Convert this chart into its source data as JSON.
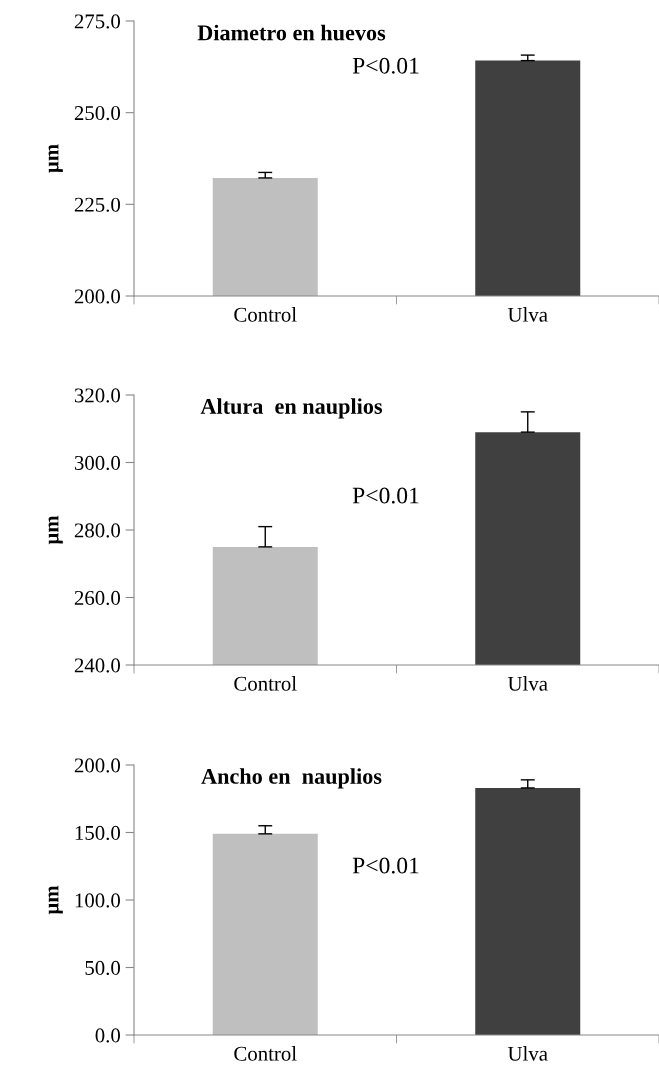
{
  "chart_data": [
    {
      "type": "bar",
      "title": "Diametro en huevos",
      "ylabel": "µm",
      "categories": [
        "Control",
        "Ulva"
      ],
      "values": [
        232.2,
        264.2
      ],
      "colors": [
        "#bfbfbf",
        "#404040"
      ],
      "errors": [
        [
          232.2,
          233.7
        ],
        [
          264.2,
          265.7
        ]
      ],
      "ylim": [
        200,
        275
      ],
      "yticks": [
        {
          "value": 200,
          "label": "200.0"
        },
        {
          "value": 225,
          "label": "225.0"
        },
        {
          "value": 250,
          "label": "250.0"
        },
        {
          "value": 275,
          "label": "275.0"
        }
      ],
      "annotations": [
        "P<0.01"
      ],
      "grid": false,
      "legend": false
    },
    {
      "type": "bar",
      "title": "Altura  en nauplios",
      "ylabel": "µm",
      "categories": [
        "Control",
        "Ulva"
      ],
      "values": [
        275.0,
        309.0
      ],
      "colors": [
        "#bfbfbf",
        "#404040"
      ],
      "errors": [
        [
          275.0,
          281.0
        ],
        [
          309.0,
          315.0
        ]
      ],
      "ylim": [
        240,
        320
      ],
      "yticks": [
        {
          "value": 240,
          "label": "240.0"
        },
        {
          "value": 260,
          "label": "260.0"
        },
        {
          "value": 280,
          "label": "280.0"
        },
        {
          "value": 300,
          "label": "300.0"
        },
        {
          "value": 320,
          "label": "320.0"
        }
      ],
      "annotations": [
        "P<0.01"
      ],
      "grid": false,
      "legend": false
    },
    {
      "type": "bar",
      "title": "Ancho en  nauplios",
      "ylabel": "µm",
      "categories": [
        "Control",
        "Ulva"
      ],
      "values": [
        149.0,
        183.0
      ],
      "colors": [
        "#bfbfbf",
        "#404040"
      ],
      "errors": [
        [
          149.0,
          155.0
        ],
        [
          183.0,
          189.0
        ]
      ],
      "ylim": [
        0,
        200
      ],
      "yticks": [
        {
          "value": 0,
          "label": "0.0"
        },
        {
          "value": 50,
          "label": "50.0"
        },
        {
          "value": 100,
          "label": "100.0"
        },
        {
          "value": 150,
          "label": "150.0"
        },
        {
          "value": 200,
          "label": "200.0"
        }
      ],
      "annotations": [
        "P<0.01"
      ],
      "grid": false,
      "legend": false
    }
  ]
}
